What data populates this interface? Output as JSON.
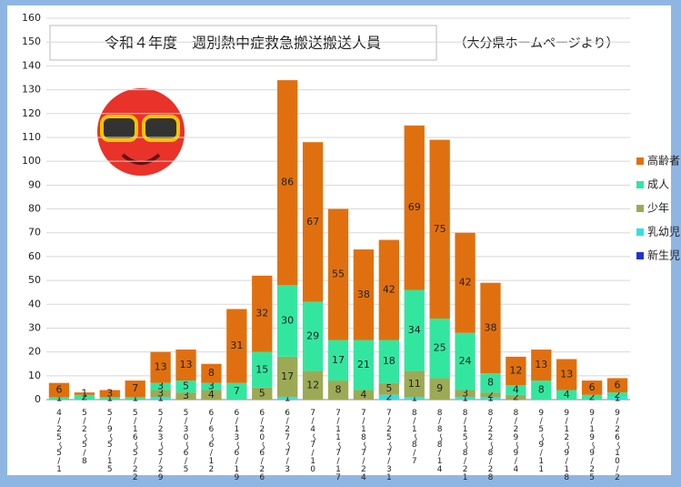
{
  "chart_data": {
    "type": "stacked-bar",
    "title": "令和４年度　週別熱中症救急搬送搬送人員",
    "subtitle": "（大分県ホームページより）",
    "categories": [
      "4/25〜5/1",
      "5/2〜5/8",
      "5/9〜5/15",
      "5/16〜5/22",
      "5/23〜5/29",
      "5/30〜6/5",
      "6/6〜6/12",
      "6/13〜6/19",
      "6/20〜6/26",
      "6/27〜7/3",
      "7/4〜7/10",
      "7/11〜7/17",
      "7/18〜7/24",
      "7/25〜7/31",
      "8/1〜8/7",
      "8/8〜8/14",
      "8/15〜8/21",
      "8/22〜8/28",
      "8/29〜9/4",
      "9/5〜9/11",
      "9/12〜9/18",
      "9/19〜9/25",
      "9/26〜10/2"
    ],
    "series": [
      {
        "name": "新生児",
        "color": "#2233cc",
        "values": [
          0,
          0,
          0,
          0,
          0,
          0,
          0,
          0,
          0,
          0,
          0,
          0,
          0,
          0,
          0,
          0,
          0,
          0,
          0,
          0,
          0,
          0,
          0
        ]
      },
      {
        "name": "乳幼児",
        "color": "#33e0e0",
        "values": [
          0,
          0,
          0,
          0,
          1,
          0,
          0,
          0,
          0,
          1,
          0,
          0,
          0,
          2,
          1,
          0,
          1,
          1,
          0,
          0,
          0,
          0,
          1
        ]
      },
      {
        "name": "少年",
        "color": "#9caa55",
        "values": [
          0,
          0,
          0,
          0,
          3,
          3,
          4,
          0,
          5,
          17,
          12,
          8,
          4,
          5,
          11,
          9,
          3,
          2,
          2,
          0,
          0,
          0,
          0
        ]
      },
      {
        "name": "成人",
        "color": "#33e6a0",
        "values": [
          1,
          2,
          1,
          1,
          3,
          5,
          3,
          7,
          15,
          30,
          29,
          17,
          21,
          18,
          34,
          25,
          24,
          8,
          4,
          8,
          4,
          2,
          2
        ]
      },
      {
        "name": "高齢者",
        "color": "#e0700f",
        "values": [
          6,
          1,
          3,
          7,
          13,
          13,
          8,
          31,
          32,
          86,
          67,
          55,
          38,
          42,
          69,
          75,
          42,
          38,
          12,
          13,
          13,
          6,
          6
        ]
      }
    ],
    "ylim": [
      0,
      160
    ],
    "yticks": [
      0,
      10,
      20,
      30,
      40,
      50,
      60,
      70,
      80,
      90,
      100,
      110,
      120,
      130,
      140,
      150,
      160
    ],
    "grid": true,
    "legend": "right"
  }
}
